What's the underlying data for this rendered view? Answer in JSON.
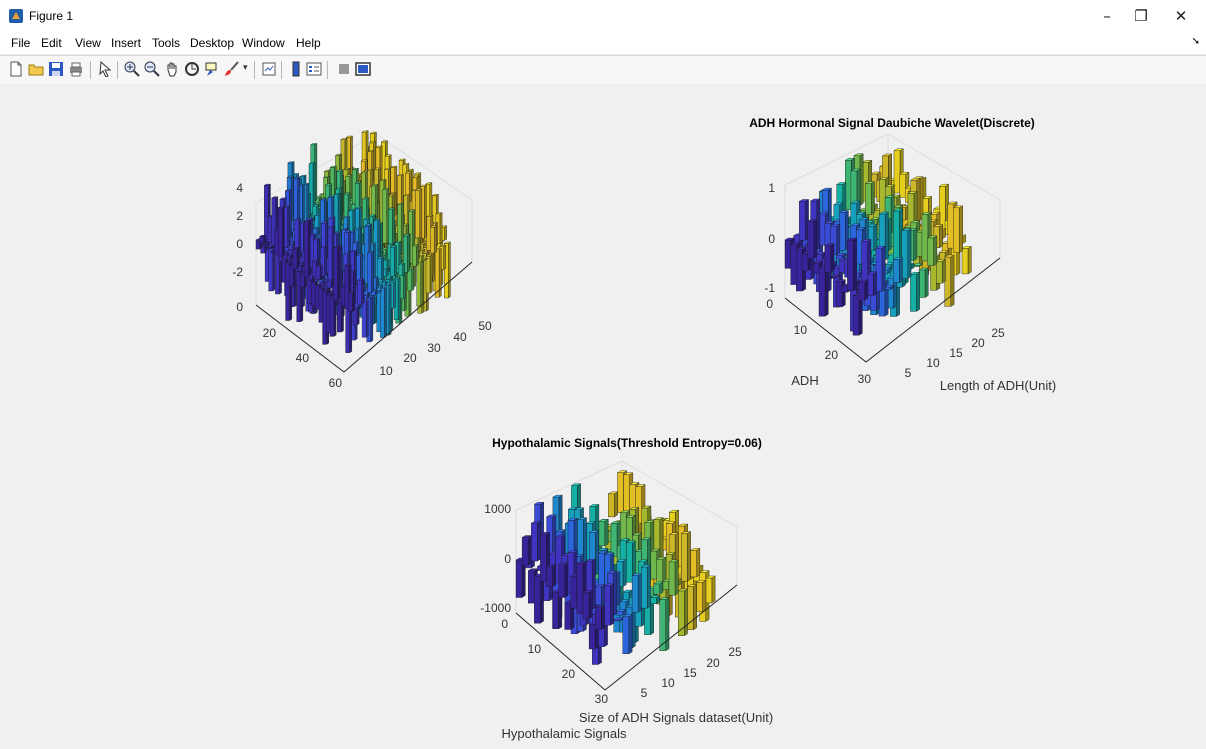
{
  "window": {
    "title": "Figure 1",
    "minimize": "–",
    "restore": "❐",
    "close": "✕"
  },
  "menu": [
    "File",
    "Edit",
    "View",
    "Insert",
    "Tools",
    "Desktop",
    "Window",
    "Help"
  ],
  "toolbar": [
    "new-figure-icon",
    "open-file-icon",
    "save-icon",
    "print-icon",
    "edit-plot-arrow-icon",
    "zoom-in-icon",
    "zoom-out-icon",
    "pan-hand-icon",
    "rotate-3d-icon",
    "data-cursor-icon",
    "brush-icon",
    "link-plot-icon",
    "insert-colorbar-icon",
    "insert-legend-icon",
    "hide-plot-tools-icon",
    "show-plot-tools-icon"
  ],
  "palette": [
    "#3e26a8",
    "#4743e6",
    "#2f6ff0",
    "#1aa5d8",
    "#17bfb1",
    "#5cc863",
    "#b6c832",
    "#f5c52b",
    "#f9e021"
  ],
  "plots": [
    {
      "id": "top-left",
      "title": "",
      "z_ticks": [
        "4",
        "2",
        "0",
        "-2"
      ],
      "row_ticks": [
        "0",
        "20",
        "40",
        "60"
      ],
      "col_ticks": [
        "10",
        "20",
        "30",
        "40",
        "50"
      ],
      "row_label": "",
      "col_label": ""
    },
    {
      "id": "top-right",
      "title": "ADH Hormonal Signal Daubiche Wavelet(Discrete)",
      "z_ticks": [
        "1",
        "0",
        "-1"
      ],
      "row_ticks": [
        "0",
        "10",
        "20",
        "30"
      ],
      "col_ticks": [
        "5",
        "10",
        "15",
        "20",
        "25"
      ],
      "row_label": "ADH",
      "col_label": "Length of ADH(Unit)"
    },
    {
      "id": "bottom",
      "title": "Hypothalamic Signals(Threshold Entropy=0.06)",
      "z_ticks": [
        "1000",
        "0",
        "-1000"
      ],
      "row_ticks": [
        "0",
        "10",
        "20",
        "30"
      ],
      "col_ticks": [
        "5",
        "10",
        "15",
        "20",
        "25"
      ],
      "row_label": "Hypothalamic Signals",
      "col_label": "Size of ADH Signals dataset(Unit)"
    }
  ]
}
